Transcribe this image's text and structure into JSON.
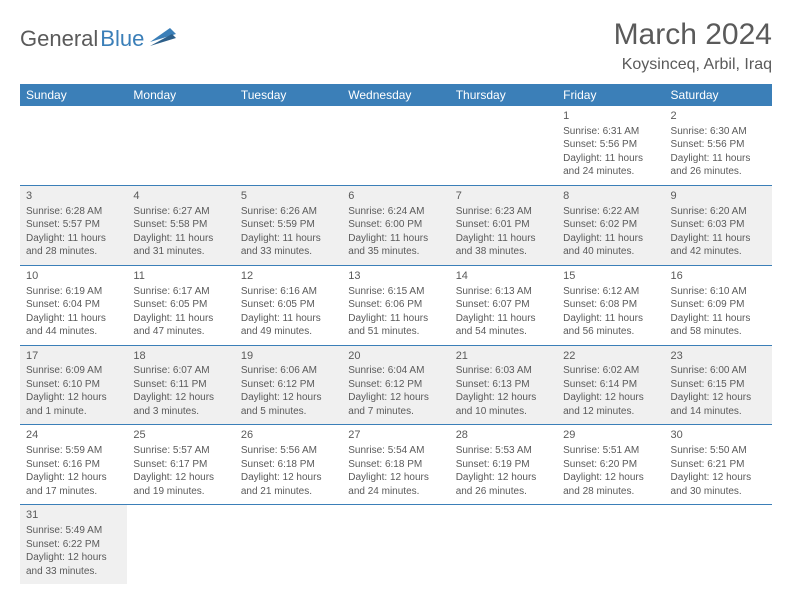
{
  "logo": {
    "part1": "General",
    "part2": "Blue"
  },
  "title": "March 2024",
  "location": "Koysinceq, Arbil, Iraq",
  "colors": {
    "header_bg": "#3b7fb8",
    "header_text": "#ffffff",
    "shaded_bg": "#f0f0f0",
    "grid_line": "#3b7fb8",
    "body_text": "#5a5a5a",
    "logo_accent": "#3b7fb8"
  },
  "weekdays": [
    "Sunday",
    "Monday",
    "Tuesday",
    "Wednesday",
    "Thursday",
    "Friday",
    "Saturday"
  ],
  "weeks": [
    [
      null,
      null,
      null,
      null,
      null,
      {
        "day": "1",
        "sunrise": "Sunrise: 6:31 AM",
        "sunset": "Sunset: 5:56 PM",
        "daylight": "Daylight: 11 hours and 24 minutes.",
        "shaded": false
      },
      {
        "day": "2",
        "sunrise": "Sunrise: 6:30 AM",
        "sunset": "Sunset: 5:56 PM",
        "daylight": "Daylight: 11 hours and 26 minutes.",
        "shaded": false
      }
    ],
    [
      {
        "day": "3",
        "sunrise": "Sunrise: 6:28 AM",
        "sunset": "Sunset: 5:57 PM",
        "daylight": "Daylight: 11 hours and 28 minutes.",
        "shaded": true
      },
      {
        "day": "4",
        "sunrise": "Sunrise: 6:27 AM",
        "sunset": "Sunset: 5:58 PM",
        "daylight": "Daylight: 11 hours and 31 minutes.",
        "shaded": true
      },
      {
        "day": "5",
        "sunrise": "Sunrise: 6:26 AM",
        "sunset": "Sunset: 5:59 PM",
        "daylight": "Daylight: 11 hours and 33 minutes.",
        "shaded": true
      },
      {
        "day": "6",
        "sunrise": "Sunrise: 6:24 AM",
        "sunset": "Sunset: 6:00 PM",
        "daylight": "Daylight: 11 hours and 35 minutes.",
        "shaded": true
      },
      {
        "day": "7",
        "sunrise": "Sunrise: 6:23 AM",
        "sunset": "Sunset: 6:01 PM",
        "daylight": "Daylight: 11 hours and 38 minutes.",
        "shaded": true
      },
      {
        "day": "8",
        "sunrise": "Sunrise: 6:22 AM",
        "sunset": "Sunset: 6:02 PM",
        "daylight": "Daylight: 11 hours and 40 minutes.",
        "shaded": true
      },
      {
        "day": "9",
        "sunrise": "Sunrise: 6:20 AM",
        "sunset": "Sunset: 6:03 PM",
        "daylight": "Daylight: 11 hours and 42 minutes.",
        "shaded": true
      }
    ],
    [
      {
        "day": "10",
        "sunrise": "Sunrise: 6:19 AM",
        "sunset": "Sunset: 6:04 PM",
        "daylight": "Daylight: 11 hours and 44 minutes.",
        "shaded": false
      },
      {
        "day": "11",
        "sunrise": "Sunrise: 6:17 AM",
        "sunset": "Sunset: 6:05 PM",
        "daylight": "Daylight: 11 hours and 47 minutes.",
        "shaded": false
      },
      {
        "day": "12",
        "sunrise": "Sunrise: 6:16 AM",
        "sunset": "Sunset: 6:05 PM",
        "daylight": "Daylight: 11 hours and 49 minutes.",
        "shaded": false
      },
      {
        "day": "13",
        "sunrise": "Sunrise: 6:15 AM",
        "sunset": "Sunset: 6:06 PM",
        "daylight": "Daylight: 11 hours and 51 minutes.",
        "shaded": false
      },
      {
        "day": "14",
        "sunrise": "Sunrise: 6:13 AM",
        "sunset": "Sunset: 6:07 PM",
        "daylight": "Daylight: 11 hours and 54 minutes.",
        "shaded": false
      },
      {
        "day": "15",
        "sunrise": "Sunrise: 6:12 AM",
        "sunset": "Sunset: 6:08 PM",
        "daylight": "Daylight: 11 hours and 56 minutes.",
        "shaded": false
      },
      {
        "day": "16",
        "sunrise": "Sunrise: 6:10 AM",
        "sunset": "Sunset: 6:09 PM",
        "daylight": "Daylight: 11 hours and 58 minutes.",
        "shaded": false
      }
    ],
    [
      {
        "day": "17",
        "sunrise": "Sunrise: 6:09 AM",
        "sunset": "Sunset: 6:10 PM",
        "daylight": "Daylight: 12 hours and 1 minute.",
        "shaded": true
      },
      {
        "day": "18",
        "sunrise": "Sunrise: 6:07 AM",
        "sunset": "Sunset: 6:11 PM",
        "daylight": "Daylight: 12 hours and 3 minutes.",
        "shaded": true
      },
      {
        "day": "19",
        "sunrise": "Sunrise: 6:06 AM",
        "sunset": "Sunset: 6:12 PM",
        "daylight": "Daylight: 12 hours and 5 minutes.",
        "shaded": true
      },
      {
        "day": "20",
        "sunrise": "Sunrise: 6:04 AM",
        "sunset": "Sunset: 6:12 PM",
        "daylight": "Daylight: 12 hours and 7 minutes.",
        "shaded": true
      },
      {
        "day": "21",
        "sunrise": "Sunrise: 6:03 AM",
        "sunset": "Sunset: 6:13 PM",
        "daylight": "Daylight: 12 hours and 10 minutes.",
        "shaded": true
      },
      {
        "day": "22",
        "sunrise": "Sunrise: 6:02 AM",
        "sunset": "Sunset: 6:14 PM",
        "daylight": "Daylight: 12 hours and 12 minutes.",
        "shaded": true
      },
      {
        "day": "23",
        "sunrise": "Sunrise: 6:00 AM",
        "sunset": "Sunset: 6:15 PM",
        "daylight": "Daylight: 12 hours and 14 minutes.",
        "shaded": true
      }
    ],
    [
      {
        "day": "24",
        "sunrise": "Sunrise: 5:59 AM",
        "sunset": "Sunset: 6:16 PM",
        "daylight": "Daylight: 12 hours and 17 minutes.",
        "shaded": false
      },
      {
        "day": "25",
        "sunrise": "Sunrise: 5:57 AM",
        "sunset": "Sunset: 6:17 PM",
        "daylight": "Daylight: 12 hours and 19 minutes.",
        "shaded": false
      },
      {
        "day": "26",
        "sunrise": "Sunrise: 5:56 AM",
        "sunset": "Sunset: 6:18 PM",
        "daylight": "Daylight: 12 hours and 21 minutes.",
        "shaded": false
      },
      {
        "day": "27",
        "sunrise": "Sunrise: 5:54 AM",
        "sunset": "Sunset: 6:18 PM",
        "daylight": "Daylight: 12 hours and 24 minutes.",
        "shaded": false
      },
      {
        "day": "28",
        "sunrise": "Sunrise: 5:53 AM",
        "sunset": "Sunset: 6:19 PM",
        "daylight": "Daylight: 12 hours and 26 minutes.",
        "shaded": false
      },
      {
        "day": "29",
        "sunrise": "Sunrise: 5:51 AM",
        "sunset": "Sunset: 6:20 PM",
        "daylight": "Daylight: 12 hours and 28 minutes.",
        "shaded": false
      },
      {
        "day": "30",
        "sunrise": "Sunrise: 5:50 AM",
        "sunset": "Sunset: 6:21 PM",
        "daylight": "Daylight: 12 hours and 30 minutes.",
        "shaded": false
      }
    ],
    [
      {
        "day": "31",
        "sunrise": "Sunrise: 5:49 AM",
        "sunset": "Sunset: 6:22 PM",
        "daylight": "Daylight: 12 hours and 33 minutes.",
        "shaded": true
      },
      null,
      null,
      null,
      null,
      null,
      null
    ]
  ]
}
